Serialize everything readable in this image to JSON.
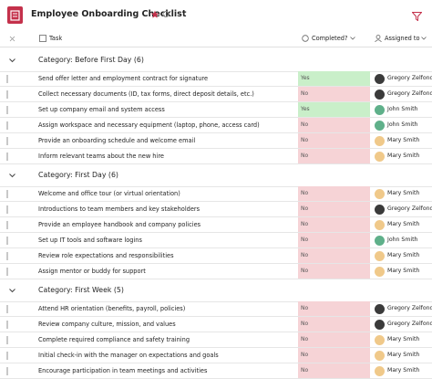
{
  "header": {
    "title": "Employee Onboarding Checklist"
  },
  "columns": {
    "task": "Task",
    "completed": "Completed?",
    "assigned": "Assigned to"
  },
  "status_colors": {
    "Yes": "#c9efc9",
    "No": "#f6d3d6"
  },
  "groups": [
    {
      "label": "Category: Before First Day (6)",
      "rows": [
        {
          "task": "Send offer letter and employment contract for signature",
          "completed": "Yes",
          "assigned": "Gregory Zelfond"
        },
        {
          "task": "Collect necessary documents (ID, tax forms, direct deposit details, etc.)",
          "completed": "No",
          "assigned": "Gregory Zelfond"
        },
        {
          "task": "Set up company email and system access",
          "completed": "Yes",
          "assigned": "John Smith"
        },
        {
          "task": "Assign workspace and necessary equipment (laptop, phone, access card)",
          "completed": "No",
          "assigned": "John Smith"
        },
        {
          "task": "Provide an onboarding schedule and welcome email",
          "completed": "No",
          "assigned": "Mary Smith"
        },
        {
          "task": "Inform relevant teams about the new hire",
          "completed": "No",
          "assigned": "Mary Smith"
        }
      ]
    },
    {
      "label": "Category: First Day (6)",
      "rows": [
        {
          "task": "Welcome and office tour (or virtual orientation)",
          "completed": "No",
          "assigned": "Mary Smith"
        },
        {
          "task": "Introductions to team members and key stakeholders",
          "completed": "No",
          "assigned": "Gregory Zelfond"
        },
        {
          "task": "Provide an employee handbook and company policies",
          "completed": "No",
          "assigned": "Mary Smith"
        },
        {
          "task": "Set up IT tools and software logins",
          "completed": "No",
          "assigned": "John Smith"
        },
        {
          "task": "Review role expectations and responsibilities",
          "completed": "No",
          "assigned": "Mary Smith"
        },
        {
          "task": "Assign mentor or buddy for support",
          "completed": "No",
          "assigned": "Mary Smith"
        }
      ]
    },
    {
      "label": "Category: First Week (5)",
      "rows": [
        {
          "task": "Attend HR orientation (benefits, payroll, policies)",
          "completed": "No",
          "assigned": "Gregory Zelfond"
        },
        {
          "task": "Review company culture, mission, and values",
          "completed": "No",
          "assigned": "Gregory Zelfond"
        },
        {
          "task": "Complete required compliance and safety training",
          "completed": "No",
          "assigned": "Mary Smith"
        },
        {
          "task": "Initial check-in with the manager on expectations and goals",
          "completed": "No",
          "assigned": "Mary Smith"
        },
        {
          "task": "Encourage participation in team meetings and activities",
          "completed": "No",
          "assigned": "Mary Smith"
        }
      ]
    }
  ]
}
